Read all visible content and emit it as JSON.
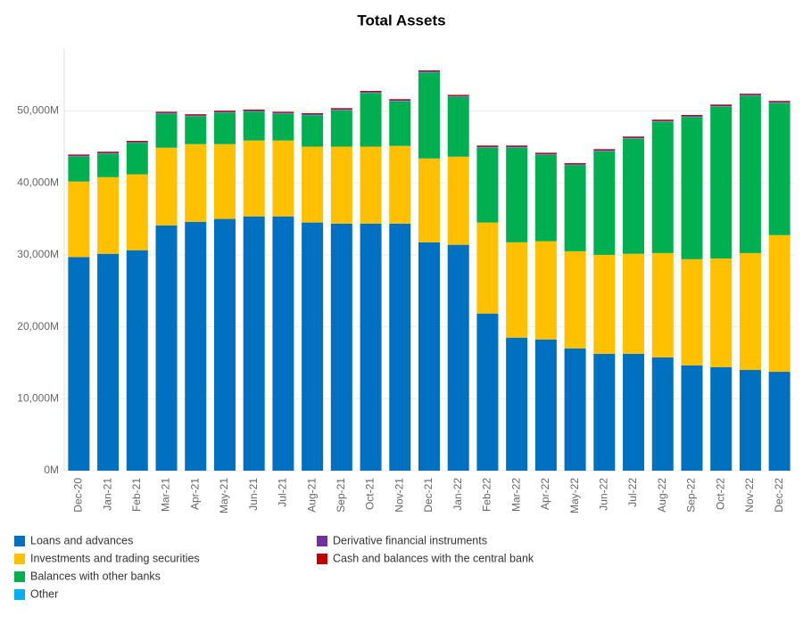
{
  "chart_data": {
    "type": "stacked-bar",
    "title": "Total Assets",
    "categories": [
      "Dec-20",
      "Jan-21",
      "Feb-21",
      "Mar-21",
      "Apr-21",
      "May-21",
      "Jun-21",
      "Jul-21",
      "Aug-21",
      "Sep-21",
      "Oct-21",
      "Nov-21",
      "Dec-21",
      "Jan-22",
      "Feb-22",
      "Mar-22",
      "Apr-22",
      "May-22",
      "Jun-22",
      "Jul-22",
      "Aug-22",
      "Sep-22",
      "Oct-22",
      "Nov-22",
      "Dec-22"
    ],
    "series": [
      {
        "name": "Loans and advances",
        "color": "#0070c0",
        "values": [
          29700,
          30150,
          30650,
          34100,
          34600,
          35000,
          35350,
          35350,
          34500,
          34350,
          34350,
          34350,
          31750,
          31400,
          21850,
          18500,
          18250,
          17000,
          16250,
          16250,
          15750,
          14650,
          14400,
          14000,
          13750
        ]
      },
      {
        "name": "Investments and trading securities",
        "color": "#ffc000",
        "values": [
          10500,
          10650,
          10550,
          10800,
          10800,
          10400,
          10550,
          10550,
          10550,
          10700,
          10700,
          10800,
          11650,
          12250,
          12650,
          13250,
          13650,
          13500,
          13750,
          13900,
          14500,
          14750,
          15100,
          16250,
          19000
        ]
      },
      {
        "name": "Balances with other banks",
        "color": "#00b050",
        "values": [
          3450,
          3250,
          4350,
          4700,
          3850,
          4350,
          4000,
          3700,
          4350,
          5050,
          7450,
          6200,
          11950,
          8300,
          10400,
          13150,
          12000,
          11950,
          14400,
          16000,
          18250,
          19750,
          21100,
          21850,
          18350
        ]
      },
      {
        "name": "Other",
        "color": "#00b0f0",
        "values": [
          50,
          50,
          50,
          50,
          50,
          50,
          50,
          50,
          50,
          50,
          50,
          50,
          50,
          50,
          50,
          50,
          50,
          50,
          50,
          50,
          50,
          50,
          50,
          50,
          50
        ]
      },
      {
        "name": "Derivative financial instruments",
        "color": "#7030a0",
        "values": [
          100,
          100,
          100,
          100,
          100,
          100,
          100,
          100,
          100,
          100,
          100,
          100,
          100,
          100,
          100,
          100,
          100,
          100,
          100,
          100,
          100,
          100,
          100,
          100,
          100
        ]
      },
      {
        "name": "Cash and balances with the central bank",
        "color": "#c00000",
        "values": [
          150,
          150,
          150,
          150,
          150,
          150,
          150,
          150,
          150,
          150,
          150,
          150,
          150,
          150,
          150,
          150,
          150,
          150,
          150,
          150,
          150,
          150,
          150,
          150,
          150
        ]
      }
    ],
    "ylim": [
      0,
      58000
    ],
    "yticks": [
      {
        "value": 0,
        "label": "0M"
      },
      {
        "value": 10000,
        "label": "10,000M"
      },
      {
        "value": 20000,
        "label": "20,000M"
      },
      {
        "value": 30000,
        "label": "30,000M"
      },
      {
        "value": 40000,
        "label": "40,000M"
      },
      {
        "value": 50000,
        "label": "50,000M"
      }
    ],
    "grid": true
  }
}
